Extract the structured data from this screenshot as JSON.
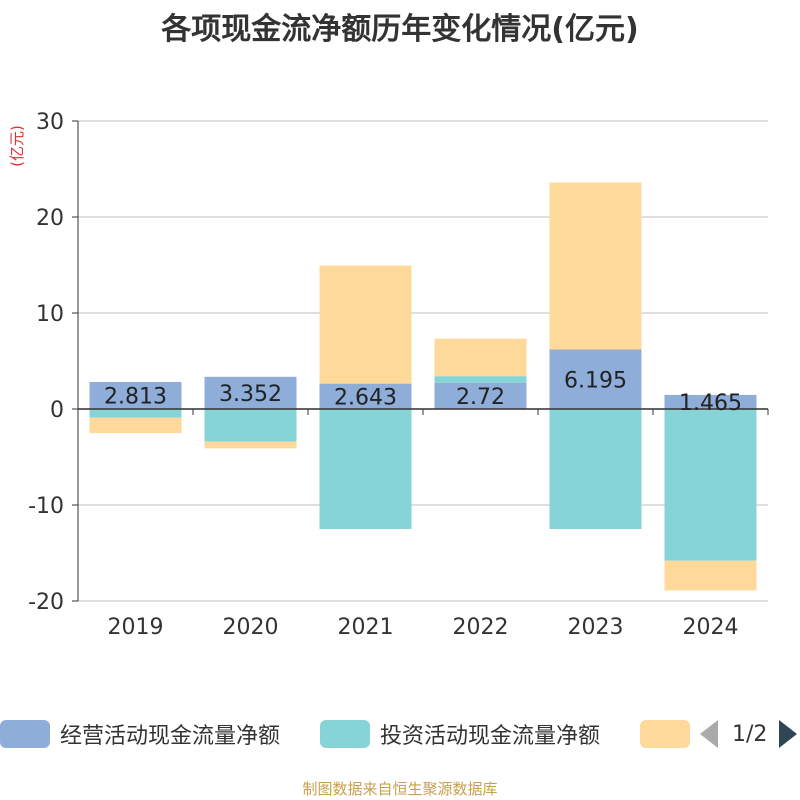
{
  "chart_data": {
    "type": "bar",
    "stacked": true,
    "title": "各项现金流净额历年变化情况(亿元)",
    "ylabel": "(亿元)",
    "xlabel": "",
    "categories": [
      "2019",
      "2020",
      "2021",
      "2022",
      "2023",
      "2024"
    ],
    "ylim": [
      -20,
      30
    ],
    "yticks": [
      -20,
      -10,
      0,
      10,
      20,
      30
    ],
    "grid": true,
    "series": [
      {
        "name": "经营活动现金流量净额",
        "color": "#8eadd9",
        "values": [
          2.813,
          3.352,
          2.643,
          2.72,
          6.195,
          1.465
        ],
        "labels": [
          "2.813",
          "3.352",
          "2.643",
          "2.72",
          "6.195",
          "1.465"
        ]
      },
      {
        "name": "投资活动现金流量净额",
        "color": "#86d4d8",
        "values": [
          -0.9,
          -3.4,
          -12.5,
          0.7,
          -12.5,
          -15.8
        ]
      },
      {
        "name": "",
        "color": "#ffd99a",
        "values": [
          -1.6,
          -0.7,
          12.3,
          3.9,
          17.4,
          -3.1
        ]
      }
    ]
  },
  "legend": {
    "items": [
      {
        "label": "经营活动现金流量净额",
        "color": "#8eadd9"
      },
      {
        "label": "投资活动现金流量净额",
        "color": "#86d4d8"
      },
      {
        "label": "",
        "color": "#ffd99a"
      }
    ],
    "page": "1/2"
  },
  "source": "制图数据来自恒生聚源数据库"
}
